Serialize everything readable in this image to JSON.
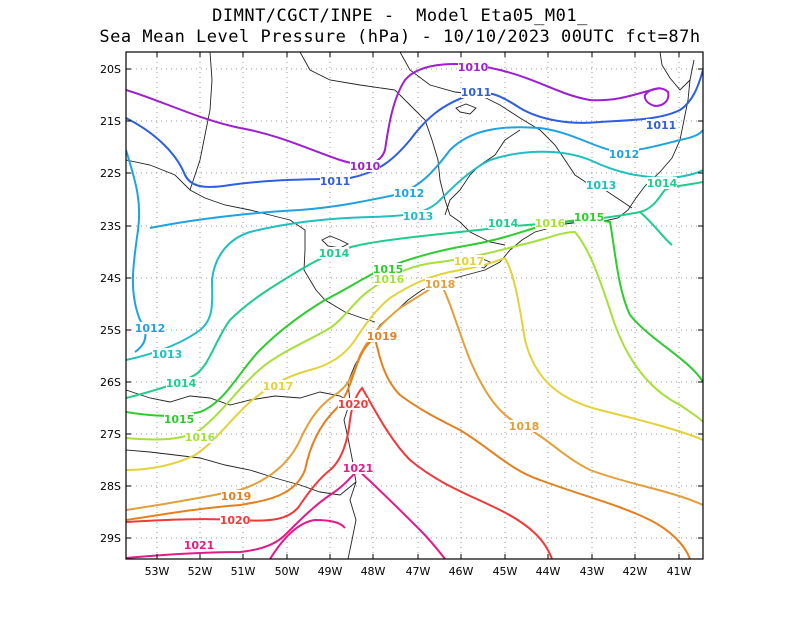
{
  "header": {
    "line1": "DIMNT/CGCT/INPE -  Model Eta05_M01_",
    "line2": "Sea Mean Level Pressure (hPa) - 10/10/2023 00UTC fct=87h"
  },
  "axes": {
    "y_ticks": [
      "20S",
      "21S",
      "22S",
      "23S",
      "24S",
      "25S",
      "26S",
      "27S",
      "28S",
      "29S"
    ],
    "x_ticks": [
      "53W",
      "52W",
      "51W",
      "50W",
      "49W",
      "48W",
      "47W",
      "46W",
      "45W",
      "44W",
      "43W",
      "42W",
      "41W"
    ]
  },
  "contours": [
    {
      "value": 1010,
      "label": "1010",
      "color": "#9e1fcf"
    },
    {
      "value": 1011,
      "label": "1011",
      "color": "#2e5fe0"
    },
    {
      "value": 1012,
      "label": "1012",
      "color": "#1fa2e3"
    },
    {
      "value": 1013,
      "label": "1013",
      "color": "#1fbfbf"
    },
    {
      "value": 1014,
      "label": "1014",
      "color": "#1fcc8c"
    },
    {
      "value": 1015,
      "label": "1015",
      "color": "#2ecc2e"
    },
    {
      "value": 1016,
      "label": "1016",
      "color": "#a6e03a"
    },
    {
      "value": 1017,
      "label": "1017",
      "color": "#e3d23a"
    },
    {
      "value": 1018,
      "label": "1018",
      "color": "#e3a03a"
    },
    {
      "value": 1019,
      "label": "1019",
      "color": "#e3801f"
    },
    {
      "value": 1020,
      "label": "1020",
      "color": "#ee3a3a"
    },
    {
      "value": 1021,
      "label": "1021",
      "color": "#e21a8a"
    }
  ],
  "chart_data": {
    "type": "contour-map",
    "title": "Sea Mean Level Pressure (hPa) - 10/10/2023 00UTC fct=87h",
    "units": "hPa",
    "lon_range": [
      -53.6,
      -40.4
    ],
    "lat_range": [
      -29.4,
      -19.8
    ],
    "levels": [
      1010,
      1011,
      1012,
      1013,
      1014,
      1015,
      1016,
      1017,
      1018,
      1019,
      1020,
      1021
    ],
    "gridlines": true
  }
}
